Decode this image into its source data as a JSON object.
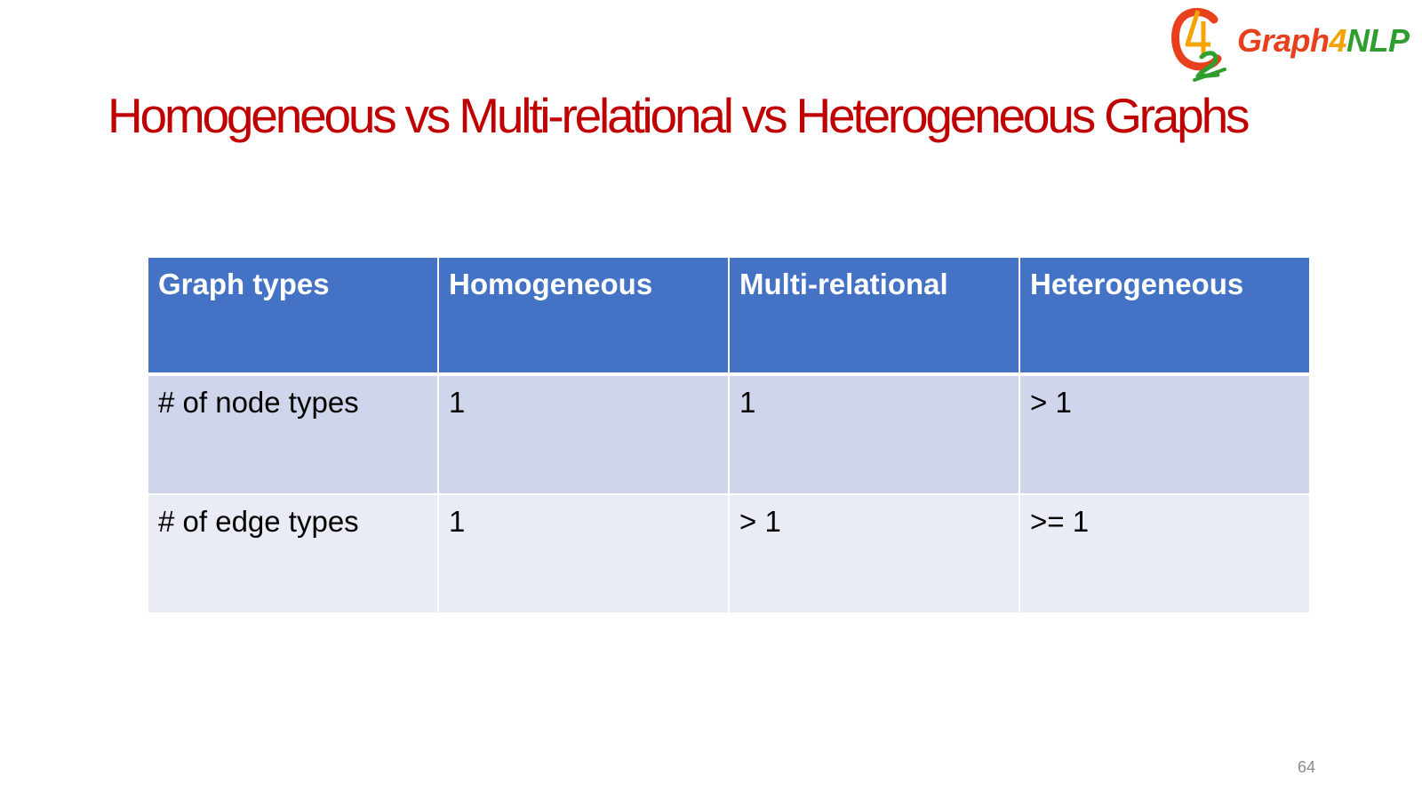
{
  "slide": {
    "title": "Homogeneous vs Multi-relational vs Heterogeneous Graphs",
    "page_number": "64"
  },
  "logo": {
    "text_part1": "Graph",
    "text_part2": "4",
    "text_part3": "NLP",
    "colors": {
      "graph": "#e8401c",
      "four": "#f4a300",
      "nlp": "#2f9e2f"
    }
  },
  "table": {
    "headers": [
      "Graph types",
      "Homogeneous",
      "Multi-relational",
      "Heterogeneous"
    ],
    "rows": [
      [
        "# of node types",
        "1",
        "1",
        "> 1"
      ],
      [
        "# of edge types",
        "1",
        "> 1",
        ">= 1"
      ]
    ]
  },
  "colors": {
    "title": "#c00000",
    "header_bg": "#4472c4",
    "row_odd_bg": "#cfd5ea",
    "row_even_bg": "#e9ebf5",
    "page_number": "#8c8c8c"
  }
}
